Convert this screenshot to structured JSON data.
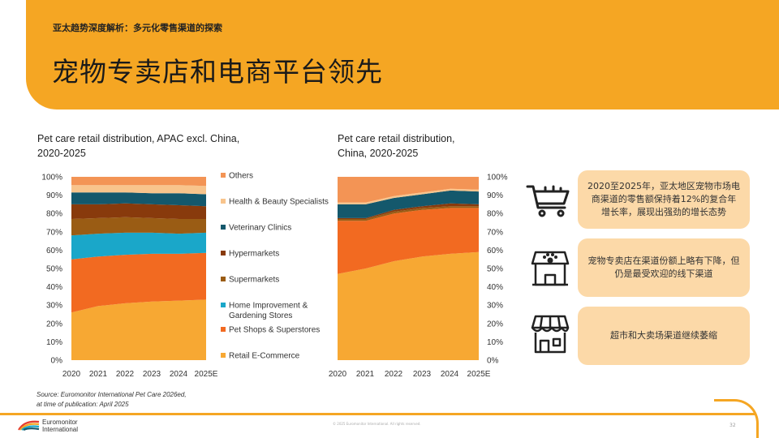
{
  "header": {
    "kicker": "亚太趋势深度解析：多元化零售渠道的探索",
    "title": "宠物专卖店和电商平台领先"
  },
  "legend": [
    {
      "label": "Others",
      "color": "#F39455"
    },
    {
      "label": "Health & Beauty Specialists",
      "color": "#F8C48C"
    },
    {
      "label": "Veterinary Clinics",
      "color": "#14586C"
    },
    {
      "label": "Hypermarkets",
      "color": "#883A0C"
    },
    {
      "label": "Supermarkets",
      "color": "#9A5C14"
    },
    {
      "label": "Home Improvement &",
      "label2": "Gardening Stores",
      "color": "#1AA7C9"
    },
    {
      "label": "Pet Shops & Superstores",
      "color": "#F26A21"
    },
    {
      "label": "Retail E-Commerce",
      "color": "#F7A833"
    }
  ],
  "chart_data": [
    {
      "type": "area",
      "title": "Pet care retail distribution, APAC excl. China,",
      "title2": "2020-2025",
      "x": [
        "2020",
        "2021",
        "2022",
        "2023",
        "2024",
        "2025E"
      ],
      "ylim": [
        0,
        100
      ],
      "yticks": [
        "0%",
        "10%",
        "20%",
        "30%",
        "40%",
        "50%",
        "60%",
        "70%",
        "80%",
        "90%",
        "100%"
      ],
      "series": [
        {
          "name": "Retail E-Commerce",
          "values": [
            26,
            29.5,
            31,
            32,
            32.5,
            33
          ]
        },
        {
          "name": "Pet Shops & Superstores",
          "values": [
            29,
            27,
            26.5,
            26,
            25.5,
            25.5
          ]
        },
        {
          "name": "Home Improvement & Gardening Stores",
          "values": [
            13,
            12.5,
            12,
            11.5,
            11,
            11
          ]
        },
        {
          "name": "Supermarkets",
          "values": [
            9,
            8.5,
            8.5,
            8,
            8,
            7.5
          ]
        },
        {
          "name": "Hypermarkets",
          "values": [
            8,
            7.5,
            7.5,
            7.5,
            7.5,
            7
          ]
        },
        {
          "name": "Veterinary Clinics",
          "values": [
            6.5,
            6.5,
            6,
            6,
            6.5,
            6.5
          ]
        },
        {
          "name": "Health & Beauty Specialists",
          "values": [
            4,
            4,
            4,
            4.5,
            4.5,
            4.5
          ]
        },
        {
          "name": "Others",
          "values": [
            4.5,
            4.5,
            4.5,
            4.5,
            4.5,
            5
          ]
        }
      ]
    },
    {
      "type": "area",
      "title": "Pet care retail distribution,",
      "title2": "China, 2020-2025",
      "x": [
        "2020",
        "2021",
        "2022",
        "2023",
        "2024",
        "2025E"
      ],
      "ylim": [
        0,
        100
      ],
      "yticks": [
        "0%",
        "10%",
        "20%",
        "30%",
        "40%",
        "50%",
        "60%",
        "70%",
        "80%",
        "90%",
        "100%"
      ],
      "series": [
        {
          "name": "Retail E-Commerce",
          "values": [
            47,
            50,
            54,
            56.5,
            58,
            59
          ]
        },
        {
          "name": "Pet Shops & Superstores",
          "values": [
            29,
            26,
            26,
            25.5,
            25,
            24
          ]
        },
        {
          "name": "Home Improvement & Gardening Stores",
          "values": [
            0,
            0,
            0,
            0,
            0,
            0
          ]
        },
        {
          "name": "Supermarkets",
          "values": [
            1,
            1,
            1,
            1,
            1,
            1
          ]
        },
        {
          "name": "Hypermarkets",
          "values": [
            0.5,
            0.5,
            1,
            1,
            1.5,
            1
          ]
        },
        {
          "name": "Veterinary Clinics",
          "values": [
            7.5,
            7.5,
            6.5,
            6.5,
            7,
            7
          ]
        },
        {
          "name": "Health & Beauty Specialists",
          "values": [
            1,
            1,
            1,
            1,
            1,
            1
          ]
        },
        {
          "name": "Others",
          "values": [
            14,
            14,
            10.5,
            8.5,
            6.5,
            7
          ]
        }
      ]
    }
  ],
  "insights": [
    {
      "icon": "shopping-cart-icon",
      "text": "2020至2025年，亚太地区宠物市场电商渠道的零售额保持着12%的复合年增长率，展现出强劲的增长态势"
    },
    {
      "icon": "pet-store-icon",
      "text": "宠物专卖店在渠道份额上略有下降，但仍是最受欢迎的线下渠道"
    },
    {
      "icon": "storefront-icon",
      "text": "超市和大卖场渠道继续萎缩"
    }
  ],
  "source": {
    "line1": "Source: Euromonitor International Pet Care 2026ed,",
    "line2": "at time of publication: April 2025"
  },
  "footer": {
    "logo_line1": "Euromonitor",
    "logo_line2": "International",
    "copyright": "© 2025 Euromonitor International. All rights reserved.",
    "page": "32"
  }
}
